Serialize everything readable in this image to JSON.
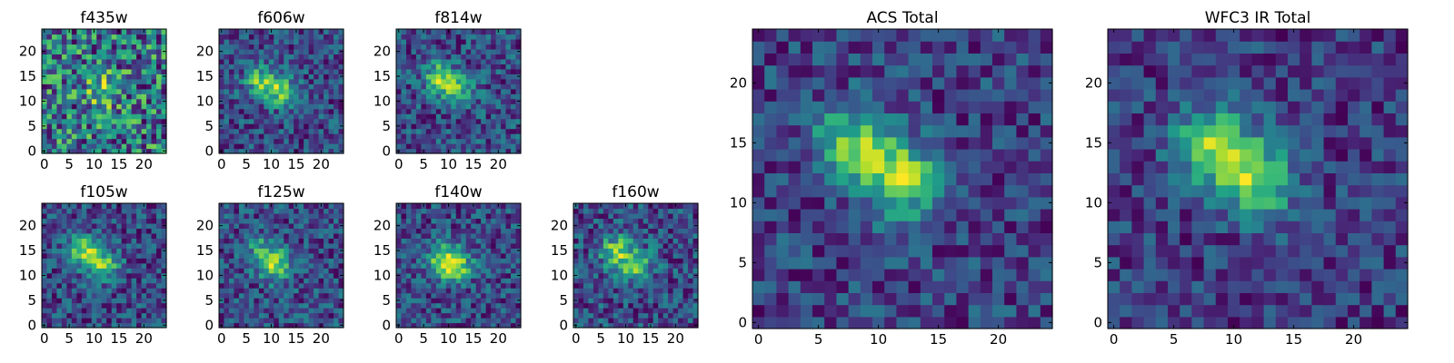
{
  "chart_data": [
    {
      "type": "heatmap",
      "title": "f435w",
      "colormap": "viridis",
      "xticks": [
        "0",
        "5",
        "10",
        "15",
        "20"
      ],
      "yticks": [
        "0",
        "5",
        "10",
        "15",
        "20"
      ],
      "xlim": [
        -0.5,
        24.5
      ],
      "ylim": [
        -0.5,
        24.5
      ],
      "peaks": [
        [
          12,
          12,
          0.6
        ]
      ],
      "noise": 0.55
    },
    {
      "type": "heatmap",
      "title": "f606w",
      "colormap": "viridis",
      "xticks": [
        "0",
        "5",
        "10",
        "15",
        "20"
      ],
      "yticks": [
        "0",
        "5",
        "10",
        "15",
        "20"
      ],
      "xlim": [
        -0.5,
        24.5
      ],
      "ylim": [
        -0.5,
        24.5
      ],
      "peaks": [
        [
          8,
          14,
          1.0
        ],
        [
          12,
          12,
          0.9
        ]
      ],
      "noise": 0.45
    },
    {
      "type": "heatmap",
      "title": "f814w",
      "colormap": "viridis",
      "xticks": [
        "0",
        "5",
        "10",
        "15",
        "20"
      ],
      "yticks": [
        "0",
        "5",
        "10",
        "15",
        "20"
      ],
      "xlim": [
        -0.5,
        24.5
      ],
      "ylim": [
        -0.5,
        24.5
      ],
      "peaks": [
        [
          8,
          15,
          1.0
        ],
        [
          12,
          12,
          0.8
        ]
      ],
      "noise": 0.45
    },
    {
      "type": "heatmap",
      "title": "f105w",
      "colormap": "viridis",
      "xticks": [
        "0",
        "5",
        "10",
        "15",
        "20"
      ],
      "yticks": [
        "0",
        "5",
        "10",
        "15",
        "20"
      ],
      "xlim": [
        -0.5,
        24.5
      ],
      "ylim": [
        -0.5,
        24.5
      ],
      "peaks": [
        [
          8,
          15,
          1.0
        ],
        [
          12,
          12,
          0.9
        ]
      ],
      "noise": 0.4
    },
    {
      "type": "heatmap",
      "title": "f125w",
      "colormap": "viridis",
      "xticks": [
        "0",
        "5",
        "10",
        "15",
        "20"
      ],
      "yticks": [
        "0",
        "5",
        "10",
        "15",
        "20"
      ],
      "xlim": [
        -0.5,
        24.5
      ],
      "ylim": [
        -0.5,
        24.5
      ],
      "peaks": [
        [
          11,
          12,
          1.0
        ],
        [
          8,
          15,
          0.6
        ]
      ],
      "noise": 0.4
    },
    {
      "type": "heatmap",
      "title": "f140w",
      "colormap": "viridis",
      "xticks": [
        "0",
        "5",
        "10",
        "15",
        "20"
      ],
      "yticks": [
        "0",
        "5",
        "10",
        "15",
        "20"
      ],
      "xlim": [
        -0.5,
        24.5
      ],
      "ylim": [
        -0.5,
        24.5
      ],
      "peaks": [
        [
          9,
          13,
          1.0
        ],
        [
          12,
          12,
          0.8
        ]
      ],
      "noise": 0.4
    },
    {
      "type": "heatmap",
      "title": "f160w",
      "colormap": "viridis",
      "xticks": [
        "0",
        "5",
        "10",
        "15",
        "20"
      ],
      "yticks": [
        "0",
        "5",
        "10",
        "15",
        "20"
      ],
      "xlim": [
        -0.5,
        24.5
      ],
      "ylim": [
        -0.5,
        24.5
      ],
      "peaks": [
        [
          8,
          15,
          1.0
        ],
        [
          12,
          12,
          0.95
        ]
      ],
      "noise": 0.45
    },
    {
      "type": "heatmap",
      "title": "ACS Total",
      "colormap": "viridis",
      "xticks": [
        "0",
        "5",
        "10",
        "15",
        "20"
      ],
      "yticks": [
        "0",
        "5",
        "10",
        "15",
        "20"
      ],
      "xlim": [
        -0.5,
        24.5
      ],
      "ylim": [
        -0.5,
        24.5
      ],
      "peaks": [
        [
          8,
          15,
          1.0
        ],
        [
          12,
          12,
          1.1
        ]
      ],
      "noise": 0.35
    },
    {
      "type": "heatmap",
      "title": "WFC3 IR Total",
      "colormap": "viridis",
      "xticks": [
        "0",
        "5",
        "10",
        "15",
        "20"
      ],
      "yticks": [
        "0",
        "5",
        "10",
        "15",
        "20"
      ],
      "xlim": [
        -0.5,
        24.5
      ],
      "ylim": [
        -0.5,
        24.5
      ],
      "peaks": [
        [
          8,
          15,
          1.0
        ],
        [
          12,
          12,
          1.05
        ]
      ],
      "noise": 0.3
    }
  ]
}
